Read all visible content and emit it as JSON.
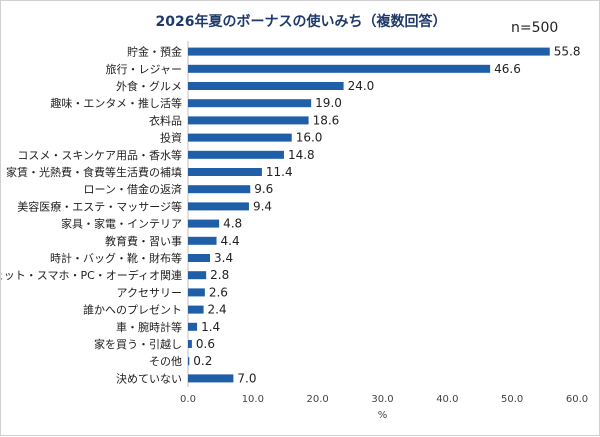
{
  "chart_data": {
    "type": "bar",
    "orientation": "horizontal",
    "title": "2026年夏のボーナスの使いみち（複数回答）",
    "annotation": "n=500",
    "xlabel": "%",
    "xlim": [
      0,
      60
    ],
    "xticks": [
      "0.0",
      "10.0",
      "20.0",
      "30.0",
      "40.0",
      "50.0",
      "60.0"
    ],
    "grid": false,
    "bar_color": "#1f5fa8",
    "categories": [
      "貯金・預金",
      "旅行・レジャー",
      "外食・グルメ",
      "趣味・エンタメ・推し活等",
      "衣料品",
      "投資",
      "コスメ・スキンケア用品・香水等",
      "家賃・光熱費・食費等生活費の補填",
      "ローン・借金の返済",
      "美容医療・エステ・マッサージ等",
      "家具・家電・インテリア",
      "教育費・習い事",
      "時計・バッグ・靴・財布等",
      "ガジェット・スマホ・PC・オーディオ関連",
      "アクセサリー",
      "誰かへのプレゼント",
      "車・腕時計等",
      "家を買う・引越し",
      "その他",
      "決めていない"
    ],
    "values": [
      55.8,
      46.6,
      24.0,
      19.0,
      18.6,
      16.0,
      14.8,
      11.4,
      9.6,
      9.4,
      4.8,
      4.4,
      3.4,
      2.8,
      2.6,
      2.4,
      1.4,
      0.6,
      0.2,
      7.0
    ],
    "value_labels": [
      "55.8",
      "46.6",
      "24.0",
      "19.0",
      "18.6",
      "16.0",
      "14.8",
      "11.4",
      "9.6",
      "9.4",
      "4.8",
      "4.4",
      "3.4",
      "2.8",
      "2.6",
      "2.4",
      "1.4",
      "0.6",
      "0.2",
      "7.0"
    ]
  }
}
